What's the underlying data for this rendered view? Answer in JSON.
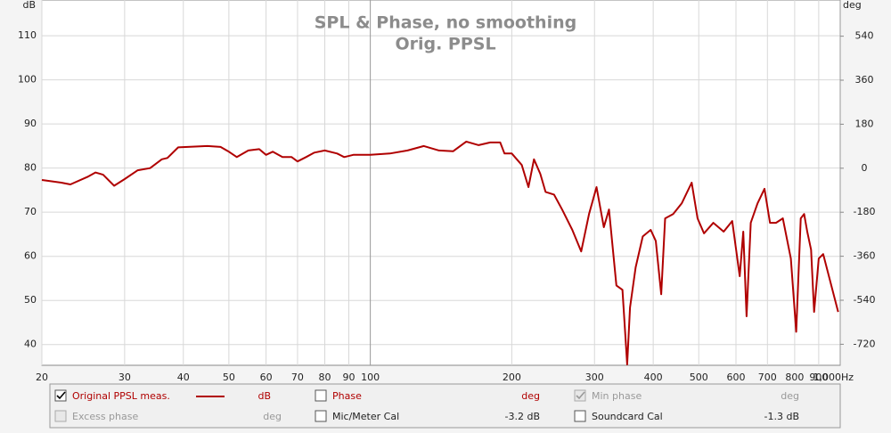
{
  "chart_data": {
    "type": "line",
    "title": "SPL & Phase, no smoothing",
    "subtitle": "Orig. PPSL",
    "y_label": "dB",
    "y2_label": "deg",
    "x_unit": "Hz",
    "xscale": "log",
    "xlim": [
      20,
      1000
    ],
    "xticks": [
      20,
      30,
      40,
      50,
      60,
      70,
      80,
      90,
      100,
      200,
      300,
      400,
      500,
      600,
      700,
      800,
      900,
      {
        "value": 1000,
        "label": "1,000"
      }
    ],
    "ylim": [
      35.3,
      118.1
    ],
    "yticks": [
      40,
      50,
      60,
      70,
      80,
      90,
      100,
      110
    ],
    "y2lim": [
      -806,
      688
    ],
    "y2ticks": [
      -720,
      -540,
      -360,
      -180,
      0,
      180,
      360,
      540
    ],
    "grid": true,
    "x": [
      20,
      22,
      23,
      25,
      26,
      27,
      28.5,
      30,
      32,
      34,
      36,
      37,
      39,
      45,
      48,
      50,
      52,
      55,
      58,
      60,
      62,
      65,
      68,
      70,
      73,
      76,
      80,
      85,
      88,
      92,
      100,
      110,
      120,
      130,
      140,
      150,
      160,
      170,
      180,
      189,
      193,
      200,
      210,
      217,
      223,
      230,
      236,
      246,
      256,
      269,
      281,
      292,
      303,
      314,
      322,
      334,
      344,
      352,
      357,
      367,
      380,
      395,
      405,
      416,
      424,
      441,
      460,
      483,
      497,
      513,
      537,
      565,
      589,
      611,
      622,
      632,
      645,
      667,
      690,
      709,
      730,
      755,
      785,
      806,
      824,
      838,
      851,
      867,
      880,
      900,
      920,
      990
    ],
    "series": [
      {
        "name": "Original PPSL meas.",
        "color": "#b00000",
        "values": [
          77.3,
          76.7,
          76.3,
          78,
          79,
          78.5,
          76,
          77.5,
          79.5,
          80,
          82,
          82.3,
          84.7,
          85,
          84.8,
          83.7,
          82.5,
          84,
          84.3,
          83,
          83.7,
          82.5,
          82.5,
          81.5,
          82.5,
          83.5,
          84,
          83.3,
          82.5,
          83,
          83,
          83.3,
          84,
          85,
          84,
          83.8,
          86,
          85.2,
          85.8,
          85.8,
          83.3,
          83.3,
          80.7,
          75.7,
          82,
          78.7,
          74.6,
          74,
          70.6,
          66,
          61.1,
          69.6,
          75.7,
          66.6,
          70.6,
          53.4,
          52.4,
          35.5,
          48.4,
          57.5,
          64.5,
          66,
          63.5,
          51.4,
          68.6,
          69.6,
          72,
          76.7,
          68.6,
          65.2,
          67.6,
          65.6,
          68,
          55.5,
          65.6,
          46.4,
          67.6,
          72,
          75.3,
          67.6,
          67.6,
          68.6,
          59.5,
          42.9,
          68.6,
          69.6,
          65.6,
          61.5,
          47.4,
          59.5,
          60.5,
          47.4
        ]
      }
    ]
  },
  "controls": [
    {
      "label": "Original PPSL meas.",
      "unit": "dB"
    },
    {
      "label": "Phase",
      "unit": "deg"
    },
    {
      "label": "Min phase",
      "unit": "deg"
    },
    {
      "label": "Excess phase",
      "unit": "deg"
    },
    {
      "label": "Mic/Meter Cal",
      "value": "-3.2 dB"
    },
    {
      "label": "Soundcard Cal",
      "value": "-1.3 dB"
    }
  ]
}
